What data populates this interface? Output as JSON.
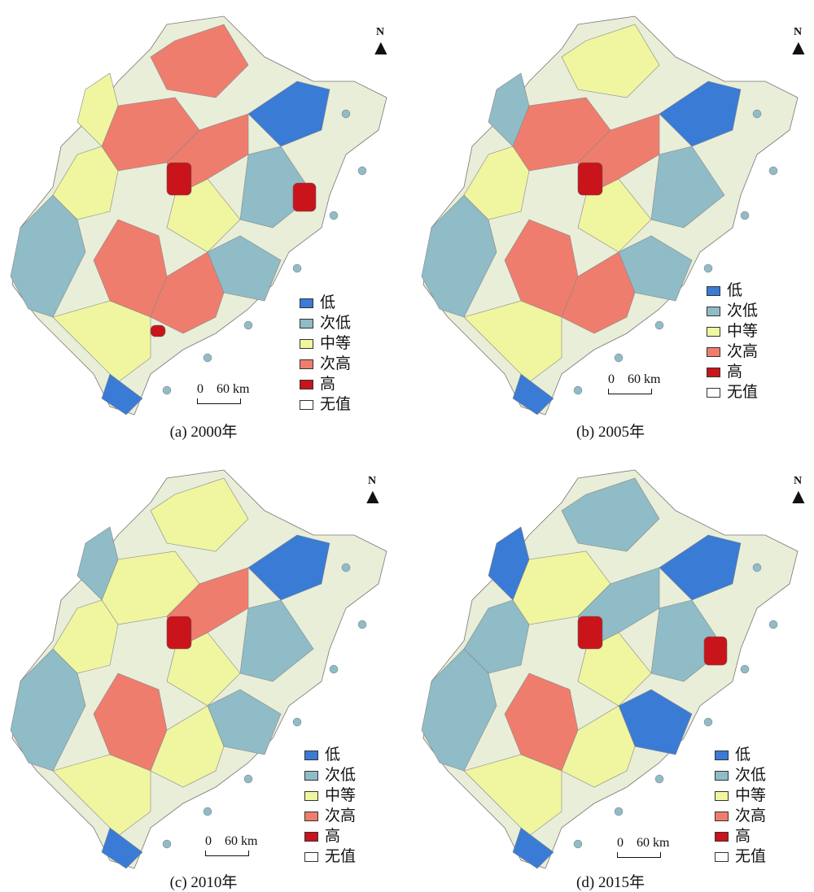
{
  "north_label": "N",
  "legend": [
    {
      "label": "低",
      "color": "#3a7bd5"
    },
    {
      "label": "次低",
      "color": "#8fbcc6"
    },
    {
      "label": "中等",
      "color": "#f0f5a0"
    },
    {
      "label": "次高",
      "color": "#ef7d6d"
    },
    {
      "label": "高",
      "color": "#c8141a"
    },
    {
      "label": "无值",
      "color": "#ffffff"
    }
  ],
  "scale": {
    "zero": "0",
    "distance": "60 km"
  },
  "panels": [
    {
      "caption": "(a) 2000年",
      "fills": [
        "#8fbcc6",
        "#f0f5a0",
        "#ef7d6d",
        "#ef7d6d",
        "#3a7bd5",
        "#f0f5a0",
        "#ef7d6d",
        "#f0f5a0",
        "#8fbcc6",
        "#ef7d6d",
        "#ef7d6d",
        "#8fbcc6",
        "#f0f5a0",
        "#3a7bd5"
      ],
      "highs": 3,
      "low": true
    },
    {
      "caption": "(b) 2005年",
      "fills": [
        "#8fbcc6",
        "#f0f5a0",
        "#ef7d6d",
        "#f0f5a0",
        "#3a7bd5",
        "#f0f5a0",
        "#ef7d6d",
        "#8fbcc6",
        "#8fbcc6",
        "#ef7d6d",
        "#ef7d6d",
        "#8fbcc6",
        "#f0f5a0",
        "#3a7bd5"
      ],
      "highs": 1,
      "low": true
    },
    {
      "caption": "(c) 2010年",
      "fills": [
        "#8fbcc6",
        "#f0f5a0",
        "#f0f5a0",
        "#f0f5a0",
        "#3a7bd5",
        "#f0f5a0",
        "#ef7d6d",
        "#8fbcc6",
        "#8fbcc6",
        "#f0f5a0",
        "#ef7d6d",
        "#8fbcc6",
        "#f0f5a0",
        "#3a7bd5"
      ],
      "highs": 1,
      "low": true
    },
    {
      "caption": "(d) 2015年",
      "fills": [
        "#8fbcc6",
        "#8fbcc6",
        "#f0f5a0",
        "#8fbcc6",
        "#3a7bd5",
        "#f0f5a0",
        "#ef7d6d",
        "#3a7bd5",
        "#3a7bd5",
        "#f0f5a0",
        "#8fbcc6",
        "#8fbcc6",
        "#f0f5a0",
        "#3a7bd5"
      ],
      "highs": 2,
      "low": true
    }
  ]
}
